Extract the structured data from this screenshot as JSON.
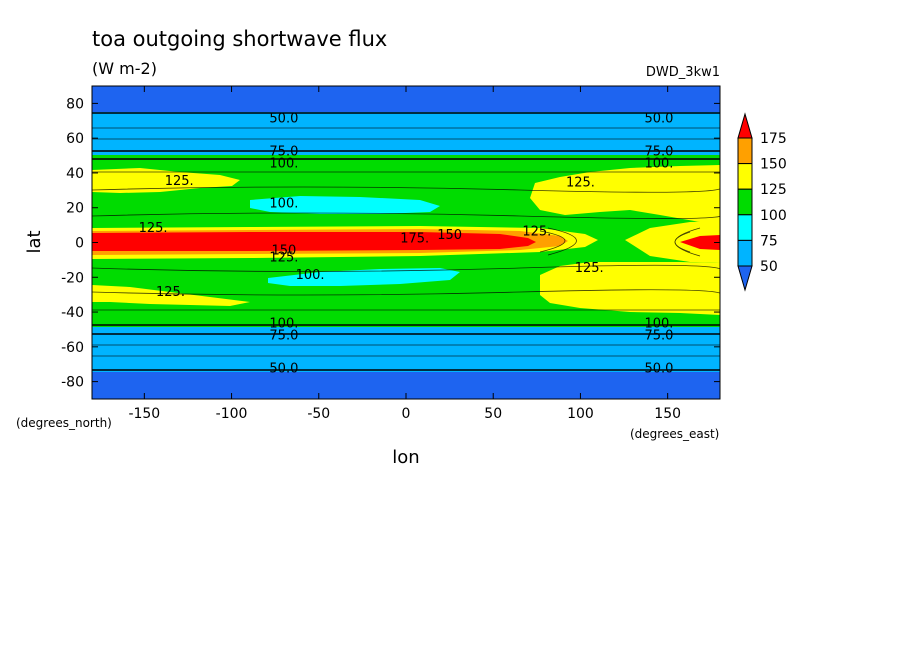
{
  "chart_data": {
    "type": "contour",
    "title": "toa outgoing shortwave flux",
    "subtitle": "(W m-2)",
    "model": "DWD_3kw1",
    "xlabel": "lon",
    "ylabel": "lat",
    "x_units": "(degrees_east)",
    "y_units": "(degrees_north)",
    "xlim": [
      -180,
      180
    ],
    "ylim": [
      -90,
      90
    ],
    "x_ticks": [
      -150,
      -100,
      -50,
      0,
      50,
      100,
      150
    ],
    "x_tick_labels": [
      "-150",
      "-100",
      "-50",
      "0",
      "50",
      "100",
      "150"
    ],
    "y_ticks": [
      80,
      60,
      40,
      20,
      0,
      -20,
      -40,
      -60,
      -80
    ],
    "y_tick_labels": [
      "80",
      "60",
      "40",
      "20",
      "0",
      "-20",
      "-40",
      "-60",
      "-80"
    ],
    "colorbar": {
      "levels": [
        50,
        75,
        100,
        125,
        150,
        175
      ],
      "labels": [
        "175",
        "150",
        "125",
        "100",
        "75",
        "50"
      ],
      "colors": [
        "#1e64f0",
        "#00b4ff",
        "#00ffff",
        "#00dc00",
        "#ffff00",
        "#ffa000",
        "#ff0000"
      ],
      "extend": "both"
    },
    "zonal_bands": [
      {
        "lat": [
          -90,
          -72
        ],
        "level": "<50"
      },
      {
        "lat": [
          -72,
          -66
        ],
        "level": "50-75"
      },
      {
        "lat": [
          -66,
          -53
        ],
        "level": "75-100"
      },
      {
        "lat": [
          -53,
          -46
        ],
        "level": "100-125"
      },
      {
        "lat": [
          -46,
          -8
        ],
        "level": "100-125"
      },
      {
        "lat": [
          -8,
          5
        ],
        "level": ">175"
      },
      {
        "lat": [
          5,
          46
        ],
        "level": "100-125"
      },
      {
        "lat": [
          46,
          53
        ],
        "level": "100-125"
      },
      {
        "lat": [
          53,
          66
        ],
        "level": "75-100"
      },
      {
        "lat": [
          66,
          72
        ],
        "level": "50-75"
      },
      {
        "lat": [
          72,
          90
        ],
        "level": "<50"
      }
    ],
    "contour_labels": [
      {
        "text": "50.0",
        "lon": -70,
        "lat": 72
      },
      {
        "text": "50.0",
        "lon": 145,
        "lat": 72
      },
      {
        "text": "75.0",
        "lon": -70,
        "lat": 53
      },
      {
        "text": "75.0",
        "lon": 145,
        "lat": 53
      },
      {
        "text": "100.",
        "lon": -70,
        "lat": 46
      },
      {
        "text": "100.",
        "lon": 145,
        "lat": 46
      },
      {
        "text": "125.",
        "lon": -130,
        "lat": 36
      },
      {
        "text": "125.",
        "lon": 100,
        "lat": 35
      },
      {
        "text": "100.",
        "lon": -70,
        "lat": 23
      },
      {
        "text": "125.",
        "lon": -145,
        "lat": 9
      },
      {
        "text": "125.",
        "lon": 75,
        "lat": 7
      },
      {
        "text": "175.",
        "lon": 5,
        "lat": 3
      },
      {
        "text": "150",
        "lon": 25,
        "lat": 5
      },
      {
        "text": "150",
        "lon": -70,
        "lat": -4
      },
      {
        "text": "125.",
        "lon": -70,
        "lat": -8
      },
      {
        "text": "125.",
        "lon": 105,
        "lat": -14
      },
      {
        "text": "100.",
        "lon": -55,
        "lat": -18
      },
      {
        "text": "125.",
        "lon": -135,
        "lat": -28
      },
      {
        "text": "100.",
        "lon": -70,
        "lat": -46
      },
      {
        "text": "100.",
        "lon": 145,
        "lat": -46
      },
      {
        "text": "75.0",
        "lon": -70,
        "lat": -53
      },
      {
        "text": "75.0",
        "lon": 145,
        "lat": -53
      },
      {
        "text": "50.0",
        "lon": -70,
        "lat": -72
      },
      {
        "text": "50.0",
        "lon": 145,
        "lat": -72
      }
    ]
  }
}
